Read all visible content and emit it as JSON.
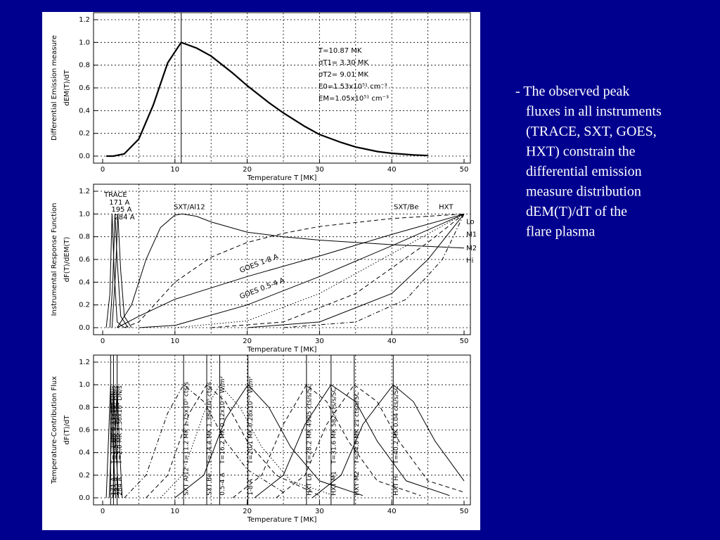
{
  "slide_text": {
    "lines": [
      "- The observed peak",
      "fluxes in all instruments",
      "(TRACE, SXT, GOES,",
      "HXT) constrain the",
      "differential emission",
      "measure distribution",
      "dEM(T)/dT of the",
      "flare plasma"
    ]
  },
  "chart_data": [
    {
      "type": "line",
      "xlabel": "Temperature T [MK]",
      "ylabel": [
        "Differential Emission measure",
        "dEM(T)/dT"
      ],
      "xlim": [
        0,
        50
      ],
      "xticks": [
        0,
        10,
        20,
        30,
        40,
        50
      ],
      "xgrid": [
        5,
        10,
        15,
        20,
        25,
        30,
        35,
        40,
        45
      ],
      "ylim": [
        0,
        1.2
      ],
      "yticks": [
        {
          "value": 0,
          "label": "0.0"
        },
        0.2,
        0.4,
        0.6,
        0.8,
        {
          "value": 1,
          "label": "1.0"
        },
        1.2
      ],
      "grid": true,
      "peak_line": true,
      "annotations": [
        "T=10.87 MK",
        "σT1= 3.30 MK",
        "σT2= 9.01 MK",
        "E0=1.53x10⁵¹ cm⁻³",
        "EM=1.05x10⁵¹ cm⁻³"
      ],
      "series": [
        {
          "color": "#000000",
          "dash": "solid",
          "width": 2.2,
          "x": [
            0.5,
            1.5,
            3,
            5,
            7,
            9,
            10.87,
            13,
            15,
            18,
            20,
            23,
            25,
            28,
            30,
            33,
            35,
            38,
            40,
            43,
            45
          ],
          "values": [
            0,
            0,
            0.02,
            0.15,
            0.45,
            0.82,
            1.0,
            0.95,
            0.88,
            0.73,
            0.62,
            0.47,
            0.38,
            0.26,
            0.19,
            0.12,
            0.08,
            0.04,
            0.025,
            0.01,
            0.005
          ]
        }
      ]
    },
    {
      "type": "line",
      "xlabel": "Temperature T [MK]",
      "ylabel": [
        "Instrumental Response Function",
        "dF(T)/dEM(T)"
      ],
      "xlim": [
        0,
        50
      ],
      "xticks": [
        0,
        10,
        20,
        30,
        40,
        50
      ],
      "xgrid": [
        5,
        10,
        15,
        20,
        25,
        30,
        35,
        40,
        45
      ],
      "ylim": [
        0,
        1.2
      ],
      "yticks": [
        {
          "value": 0,
          "label": "0.0"
        },
        0.2,
        0.4,
        0.6,
        0.8,
        {
          "value": 1,
          "label": "1.0"
        },
        1.2
      ],
      "grid": true,
      "peak_line": false,
      "annotations": [
        "TRACE",
        "HXT"
      ],
      "series": [
        {
          "name": "171 A",
          "color": "#000000",
          "dash": "solid",
          "x": [
            0.5,
            1,
            1.3,
            1.6,
            2,
            3
          ],
          "values": [
            0,
            0.3,
            1,
            0.5,
            0.05,
            0
          ]
        },
        {
          "name": "195 A",
          "color": "#000000",
          "dash": "solid",
          "x": [
            1,
            1.4,
            1.7,
            2,
            2.5,
            3.5
          ],
          "values": [
            0,
            0.4,
            1,
            0.6,
            0.1,
            0
          ]
        },
        {
          "name": "284 A",
          "color": "#000000",
          "dash": "solid",
          "x": [
            1.3,
            1.8,
            2.1,
            2.5,
            3,
            4
          ],
          "values": [
            0,
            0.5,
            1,
            0.5,
            0.1,
            0
          ]
        },
        {
          "name": "SXT/Al12",
          "color": "#000000",
          "dash": "solid",
          "x": [
            2,
            4,
            6,
            8,
            10,
            11,
            13,
            15,
            20,
            25,
            30,
            40,
            50
          ],
          "values": [
            0,
            0.2,
            0.6,
            0.88,
            0.99,
            1,
            0.98,
            0.93,
            0.84,
            0.8,
            0.77,
            0.73,
            0.7
          ]
        },
        {
          "name": "SXT/Be",
          "color": "#000000",
          "dash": "dashed",
          "x": [
            3,
            5,
            10,
            15,
            20,
            25,
            30,
            40,
            50
          ],
          "values": [
            0,
            0.05,
            0.4,
            0.62,
            0.75,
            0.83,
            0.89,
            0.96,
            1
          ]
        },
        {
          "name": "GOES 1-8 A",
          "color": "#000000",
          "dash": "solid",
          "x": [
            2,
            5,
            10,
            20,
            30,
            40,
            50
          ],
          "values": [
            0,
            0.1,
            0.25,
            0.45,
            0.63,
            0.82,
            1
          ]
        },
        {
          "name": "GOES 0.5-4 A",
          "color": "#000000",
          "dash": "solid",
          "x": [
            5,
            10,
            20,
            30,
            40,
            50
          ],
          "values": [
            0,
            0.02,
            0.2,
            0.45,
            0.72,
            1
          ]
        },
        {
          "name": "Lo",
          "color": "#000000",
          "dash": "dotted",
          "x": [
            10,
            20,
            30,
            40,
            50
          ],
          "values": [
            0,
            0.06,
            0.3,
            0.65,
            1
          ]
        },
        {
          "name": "M1",
          "color": "#000000",
          "dash": "dashed",
          "x": [
            15,
            25,
            35,
            45,
            50
          ],
          "values": [
            0,
            0.05,
            0.3,
            0.75,
            1
          ]
        },
        {
          "name": "M2",
          "color": "#000000",
          "dash": "solid",
          "x": [
            20,
            30,
            40,
            45,
            50
          ],
          "values": [
            0,
            0.05,
            0.3,
            0.6,
            1
          ]
        },
        {
          "name": "Hi",
          "color": "#000000",
          "dash": "dashdot",
          "x": [
            25,
            35,
            42,
            47,
            50
          ],
          "values": [
            0,
            0.05,
            0.25,
            0.6,
            1
          ]
        }
      ]
    },
    {
      "type": "line",
      "xlabel": "Temperature T [MK]",
      "ylabel": [
        "Temperature-Contribution Flux",
        "dF(T)/dT"
      ],
      "xlim": [
        0,
        50
      ],
      "xticks": [
        0,
        10,
        20,
        30,
        40,
        50
      ],
      "xgrid": [
        5,
        10,
        15,
        20,
        25,
        30,
        35,
        40,
        45
      ],
      "ylim": [
        0,
        1.2
      ],
      "yticks": [
        {
          "value": 0,
          "label": "0.0"
        },
        0.2,
        0.4,
        0.6,
        0.8,
        {
          "value": 1,
          "label": "1.0"
        },
        1.2
      ],
      "grid": true,
      "peak_line": true,
      "series": [
        {
          "name": "171 A",
          "label": "T=1.1 MK 6.33x10⁴ DN/s",
          "color": "#000000",
          "dash": "solid",
          "x": [
            0.5,
            0.8,
            1.1,
            1.4,
            1.8
          ],
          "values": [
            0,
            0.5,
            1,
            0.5,
            0
          ]
        },
        {
          "name": "195 A",
          "label": "T=1.5 MK 1.94x10⁵ DN/s",
          "color": "#000000",
          "dash": "solid",
          "x": [
            0.9,
            1.2,
            1.5,
            1.8,
            2.2
          ],
          "values": [
            0,
            0.5,
            1,
            0.5,
            0
          ]
        },
        {
          "name": "284 A",
          "label": "T=2.0 MK 1.36x10⁴ DN/s",
          "color": "#000000",
          "dash": "solid",
          "x": [
            1.4,
            1.7,
            2,
            2.3,
            2.7
          ],
          "values": [
            0,
            0.5,
            1,
            0.5,
            0
          ]
        },
        {
          "name": "SXT Al12",
          "label": "T=11.2 MK 1.75x10⁵ cts/s",
          "color": "#000000",
          "dash": "dashdot",
          "x": [
            3,
            6,
            9,
            11.2,
            14,
            17,
            20,
            25
          ],
          "values": [
            0,
            0.2,
            0.75,
            1,
            0.85,
            0.5,
            0.25,
            0.05
          ]
        },
        {
          "name": "SXT Be",
          "label": "T=14.4 MK 1.38x10⁵ cts/s",
          "color": "#000000",
          "dash": "dashed",
          "x": [
            6,
            9,
            12,
            14.4,
            17,
            20,
            24,
            30
          ],
          "values": [
            0,
            0.2,
            0.75,
            1,
            0.85,
            0.5,
            0.2,
            0.02
          ]
        },
        {
          "name": "0.5-4 A",
          "label": "T=16.2 MK 0.12x10⁻⁵ W/m²",
          "color": "#000000",
          "dash": "dotted",
          "x": [
            8,
            11,
            14,
            16.2,
            19,
            22,
            26,
            32
          ],
          "values": [
            0,
            0.2,
            0.75,
            1,
            0.8,
            0.45,
            0.15,
            0.02
          ]
        },
        {
          "name": "1-8 A",
          "label": "T=20.1 MK 0.28x10⁻³ W/m²",
          "color": "#000000",
          "dash": "solid",
          "x": [
            10,
            14,
            17,
            20.1,
            23,
            26,
            30,
            36
          ],
          "values": [
            0,
            0.2,
            0.7,
            1,
            0.8,
            0.45,
            0.15,
            0.02
          ]
        },
        {
          "name": "HXT Lo",
          "label": "T=28.2 MK 4905 cts/s/SC",
          "color": "#000000",
          "dash": "dashed",
          "x": [
            18,
            22,
            25,
            28.2,
            31,
            34,
            38,
            44
          ],
          "values": [
            0,
            0.2,
            0.65,
            1,
            0.85,
            0.5,
            0.15,
            0.02
          ]
        },
        {
          "name": "HXT M1",
          "label": "T=31.6 MK 582 cts/s/SC",
          "color": "#000000",
          "dash": "solid",
          "x": [
            21,
            25,
            28,
            31.6,
            35,
            38,
            42,
            48
          ],
          "values": [
            0,
            0.2,
            0.65,
            1,
            0.85,
            0.5,
            0.15,
            0.02
          ]
        },
        {
          "name": "HXT M2",
          "label": "T=34.8 MK 21 cts/s/SC",
          "color": "#000000",
          "dash": "dashed",
          "x": [
            24,
            28,
            31,
            34.8,
            38,
            41,
            45,
            50
          ],
          "values": [
            0,
            0.2,
            0.65,
            1,
            0.85,
            0.5,
            0.15,
            0.05
          ]
        },
        {
          "name": "HXT Hi",
          "label": "T=40.2 MK 0.04 cts/s/SC",
          "color": "#000000",
          "dash": "solid",
          "x": [
            29,
            33,
            36,
            40.2,
            43,
            46,
            50
          ],
          "values": [
            0,
            0.2,
            0.65,
            1,
            0.85,
            0.5,
            0.15
          ]
        }
      ]
    }
  ]
}
